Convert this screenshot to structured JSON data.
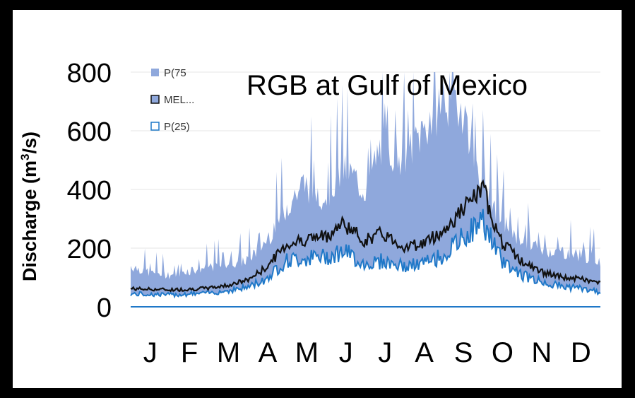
{
  "chart_data": {
    "type": "area",
    "title": "RGB at Gulf of Mexico",
    "ylabel": "Discharge (m³/s)",
    "ylabel_base": "Discharge (m",
    "ylabel_sup": "3",
    "ylabel_tail": "/s)",
    "xlabel": "",
    "ylim": [
      0,
      800
    ],
    "yticks": [
      0,
      200,
      400,
      600,
      800
    ],
    "months": [
      "J",
      "F",
      "M",
      "A",
      "M",
      "J",
      "J",
      "A",
      "S",
      "O",
      "N",
      "D"
    ],
    "grid": true,
    "legend_position": "top-left",
    "legend": [
      "P(75",
      "MEL...",
      "P(25)"
    ],
    "series_colors": {
      "p75": "#8fa8dc",
      "median": "#111111",
      "p25": "#1f78c8"
    },
    "x_days": [
      1,
      15,
      32,
      46,
      60,
      74,
      91,
      105,
      121,
      135,
      152,
      166,
      182,
      196,
      213,
      227,
      244,
      258,
      274,
      288,
      305,
      319,
      335,
      350,
      365
    ],
    "series": [
      {
        "name": "P(75",
        "values": [
          140,
          120,
          110,
          125,
          135,
          150,
          160,
          220,
          340,
          420,
          380,
          480,
          400,
          560,
          520,
          600,
          720,
          690,
          420,
          300,
          230,
          200,
          190,
          180,
          160
        ]
      },
      {
        "name": "MEDIAN",
        "values": [
          62,
          60,
          58,
          60,
          63,
          72,
          90,
          130,
          210,
          230,
          240,
          285,
          225,
          250,
          205,
          215,
          260,
          330,
          400,
          225,
          150,
          120,
          100,
          95,
          80
        ]
      },
      {
        "name": "P(25)",
        "values": [
          45,
          44,
          42,
          45,
          48,
          55,
          68,
          95,
          160,
          170,
          175,
          195,
          150,
          160,
          140,
          150,
          180,
          240,
          300,
          165,
          110,
          88,
          72,
          65,
          50
        ]
      }
    ]
  }
}
